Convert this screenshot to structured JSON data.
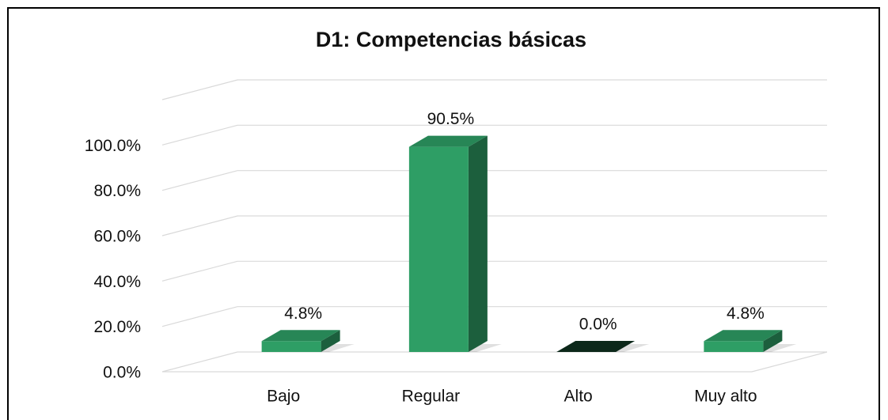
{
  "chart_data": {
    "type": "bar3d",
    "title": "D1: Competencias básicas",
    "categories": [
      "Bajo",
      "Regular",
      "Alto",
      "Muy alto"
    ],
    "values": [
      4.8,
      90.5,
      0.0,
      4.8
    ],
    "value_labels": [
      "4.8%",
      "90.5%",
      "0.0%",
      "4.8%"
    ],
    "color": "#2e9e65",
    "ylim": [
      0,
      120
    ],
    "yticks": [
      {
        "value": 0,
        "label": "0.0%"
      },
      {
        "value": 20,
        "label": "20.0%"
      },
      {
        "value": 40,
        "label": "40.0%"
      },
      {
        "value": 60,
        "label": "60.0%"
      },
      {
        "value": 80,
        "label": "80.0%"
      },
      {
        "value": 100,
        "label": "100.0%"
      }
    ],
    "grid": true
  }
}
